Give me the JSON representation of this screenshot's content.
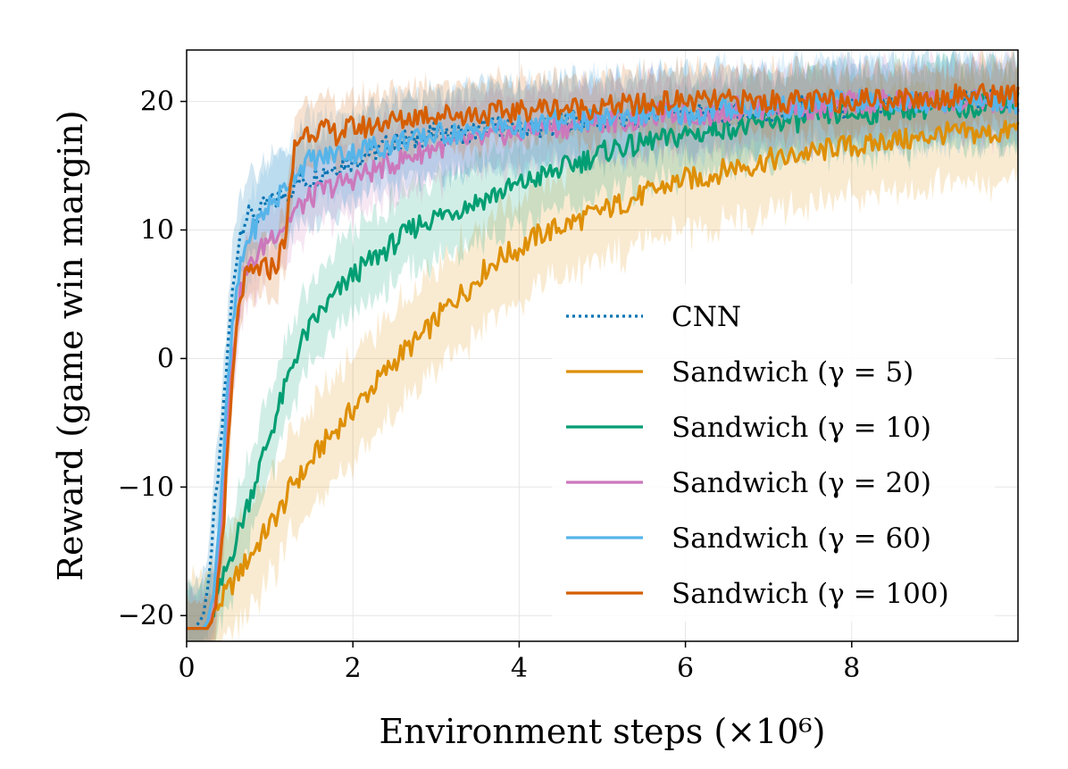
{
  "chart_data": {
    "type": "line",
    "title": "",
    "xlabel": "Environment steps (×10⁶)",
    "ylabel": "Reward (game win margin)",
    "xlim": [
      0,
      10
    ],
    "ylim": [
      -22,
      24
    ],
    "xticks": [
      0,
      2,
      4,
      6,
      8
    ],
    "yticks": [
      -20,
      -10,
      0,
      10,
      20
    ],
    "xtick_labels": [
      "0",
      "2",
      "4",
      "6",
      "8"
    ],
    "ytick_labels": [
      "−20",
      "−10",
      "0",
      "10",
      "20"
    ],
    "grid": true,
    "legend_position": "lower-right",
    "x": [
      0,
      0.1,
      0.2,
      0.25,
      0.3,
      0.35,
      0.4,
      0.45,
      0.5,
      0.55,
      0.6,
      0.65,
      0.7,
      0.75,
      0.8,
      0.85,
      0.9,
      0.95,
      1.0,
      1.1,
      1.2,
      1.25,
      1.3,
      1.4,
      1.5,
      1.6,
      1.8,
      2.0,
      2.2,
      2.4,
      2.6,
      2.8,
      3.0,
      3.2,
      3.4,
      3.6,
      3.8,
      4.0,
      4.2,
      4.4,
      4.6,
      4.8,
      5.0,
      5.2,
      5.4,
      5.6,
      5.8,
      6.0,
      6.2,
      6.4,
      6.6,
      6.8,
      7.0,
      7.2,
      7.4,
      7.6,
      7.8,
      8.0,
      8.2,
      8.4,
      8.6,
      8.8,
      9.0,
      9.2,
      9.4,
      9.6,
      9.8,
      10.0
    ],
    "series": [
      {
        "name": "CNN",
        "color": "#0173b2",
        "style": "dotted",
        "band": 4,
        "values": [
          -21,
          -21,
          -20,
          -18,
          -15,
          -11,
          -8,
          -3,
          1,
          5,
          8,
          10,
          11,
          11,
          11.5,
          11,
          11.5,
          12,
          12,
          12.5,
          13,
          13,
          13.5,
          14,
          14,
          14.5,
          15,
          15.5,
          16,
          16.5,
          17,
          17,
          17.5,
          17.5,
          17.5,
          18,
          18,
          18,
          18,
          18,
          18.5,
          18.5,
          18.5,
          18.5,
          18.5,
          19,
          19,
          19,
          19,
          19,
          19,
          19,
          19,
          19,
          19.5,
          19.5,
          19.5,
          19.5,
          19.5,
          19.5,
          19.5,
          20,
          20,
          20,
          20,
          20,
          20,
          20
        ]
      },
      {
        "name": "Sandwich (γ = 5)",
        "color": "#de8f05",
        "style": "solid",
        "band": 5,
        "values": [
          -21,
          -21,
          -21,
          -21,
          -20,
          -19.5,
          -19,
          -18.5,
          -18,
          -17.5,
          -17,
          -16.5,
          -16,
          -15.5,
          -15,
          -14.5,
          -14,
          -13.5,
          -13,
          -12,
          -11,
          -10,
          -9.5,
          -9,
          -8,
          -7,
          -5.5,
          -4,
          -2.5,
          -1,
          0.5,
          1.5,
          3,
          4.5,
          5.5,
          7,
          8,
          8.5,
          9.5,
          10,
          10.5,
          11,
          11.5,
          12,
          12.5,
          13,
          13.5,
          14,
          14,
          14.5,
          15,
          15,
          15.5,
          15.5,
          16,
          16,
          16.5,
          16.5,
          16.5,
          17,
          17,
          17,
          17.5,
          17.5,
          17.5,
          17.5,
          17.5,
          18
        ]
      },
      {
        "name": "Sandwich (γ = 10)",
        "color": "#029e73",
        "style": "solid",
        "band": 4,
        "values": [
          -21,
          -21,
          -21,
          -20.5,
          -20,
          -19,
          -18,
          -17,
          -16,
          -15,
          -14,
          -13,
          -12,
          -11,
          -10,
          -9,
          -8,
          -7,
          -6,
          -4,
          -2,
          -1,
          0,
          1.5,
          2.5,
          3.5,
          5,
          6.5,
          7.5,
          8.5,
          9.5,
          10.5,
          11,
          11.5,
          12,
          12.5,
          13,
          13.5,
          14,
          14.5,
          15,
          15.5,
          16,
          16.5,
          16.5,
          17,
          17,
          17.5,
          17.5,
          18,
          18,
          18,
          18.5,
          18.5,
          18.5,
          19,
          19,
          19,
          19,
          19.5,
          19.5,
          19.5,
          19.5,
          19.5,
          19.5,
          20,
          20,
          20
        ]
      },
      {
        "name": "Sandwich (γ = 20)",
        "color": "#cc78bc",
        "style": "solid",
        "band": 3.5,
        "values": [
          -21,
          -21,
          -21,
          -20.5,
          -20,
          -18,
          -15,
          -10,
          -4,
          0,
          3,
          5,
          6.5,
          7,
          7.5,
          8,
          8.5,
          9,
          9.5,
          10,
          10.5,
          11,
          11.5,
          12,
          12.5,
          13,
          13.5,
          14,
          14.5,
          15,
          15.5,
          16,
          16.5,
          16.5,
          17,
          17,
          17.5,
          17.5,
          18,
          18,
          18,
          18.5,
          18.5,
          18.5,
          18.5,
          19,
          19,
          19,
          19,
          19,
          19.5,
          19.5,
          19.5,
          19.5,
          19.5,
          19.5,
          19.5,
          20,
          20,
          20,
          20,
          20,
          20,
          20,
          20,
          20,
          20,
          20
        ]
      },
      {
        "name": "Sandwich (γ = 60)",
        "color": "#56b4e9",
        "style": "solid",
        "band": 4,
        "values": [
          -21,
          -21,
          -21,
          -20.5,
          -19,
          -16,
          -12,
          -7,
          -2,
          2,
          5,
          7,
          8.5,
          9.5,
          10,
          10.5,
          11,
          11.5,
          12,
          12.5,
          13.5,
          14,
          14.5,
          15,
          15.5,
          15.5,
          16,
          16,
          16.5,
          16.5,
          17,
          17,
          17.5,
          17.5,
          17.5,
          18,
          18,
          18,
          18,
          18.5,
          18.5,
          18.5,
          18.5,
          19,
          19,
          19,
          19,
          19,
          19,
          19.5,
          19.5,
          19.5,
          19.5,
          19.5,
          19.5,
          20,
          20,
          20,
          20,
          20,
          20,
          20,
          20,
          20,
          20,
          20,
          20,
          20
        ]
      },
      {
        "name": "Sandwich (γ = 100)",
        "color": "#d55e00",
        "style": "solid",
        "band": 3,
        "values": [
          -21,
          -21,
          -21,
          -21,
          -20.5,
          -19,
          -16,
          -12,
          -7,
          -2,
          2,
          5,
          6,
          6.5,
          6.5,
          7,
          7,
          7,
          7,
          7.5,
          10,
          13,
          16.5,
          17.5,
          17.8,
          17.8,
          17.5,
          18,
          18,
          18.5,
          18.5,
          19,
          19,
          19,
          19,
          19,
          19.2,
          19.2,
          19.5,
          19.5,
          19.5,
          19.5,
          19.5,
          19.7,
          19.7,
          19.7,
          20,
          20,
          20,
          20,
          20,
          20,
          20,
          20,
          20,
          20,
          20,
          20.2,
          20.2,
          20.2,
          20.2,
          20.2,
          20.2,
          20.5,
          20.5,
          20.5,
          20.5,
          20.5
        ]
      }
    ]
  }
}
